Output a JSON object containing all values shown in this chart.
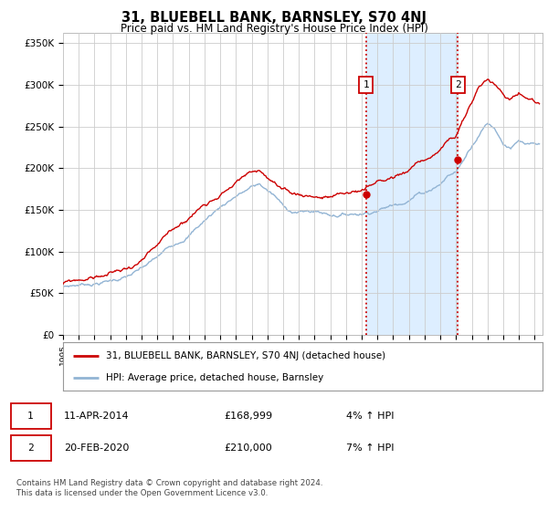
{
  "title": "31, BLUEBELL BANK, BARNSLEY, S70 4NJ",
  "subtitle": "Price paid vs. HM Land Registry's House Price Index (HPI)",
  "ylabel_ticks": [
    "£0",
    "£50K",
    "£100K",
    "£150K",
    "£200K",
    "£250K",
    "£300K",
    "£350K"
  ],
  "ytick_values": [
    0,
    50000,
    100000,
    150000,
    200000,
    250000,
    300000,
    350000
  ],
  "ylim": [
    0,
    362000
  ],
  "xlim_start": 1995.0,
  "xlim_end": 2025.5,
  "hpi_color": "#92b4d4",
  "sale_color": "#cc0000",
  "vline_color": "#cc0000",
  "span_color": "#ddeeff",
  "marker1_year": 2014.27,
  "marker2_year": 2020.12,
  "marker1_price": 168999,
  "marker2_price": 210000,
  "ann1_y": 300000,
  "ann2_y": 300000,
  "legend_sale_label": "31, BLUEBELL BANK, BARNSLEY, S70 4NJ (detached house)",
  "legend_hpi_label": "HPI: Average price, detached house, Barnsley",
  "table_row1": [
    "1",
    "11-APR-2014",
    "£168,999",
    "4% ↑ HPI"
  ],
  "table_row2": [
    "2",
    "20-FEB-2020",
    "£210,000",
    "7% ↑ HPI"
  ],
  "footer": "Contains HM Land Registry data © Crown copyright and database right 2024.\nThis data is licensed under the Open Government Licence v3.0.",
  "background_color": "#ffffff",
  "grid_color": "#cccccc"
}
